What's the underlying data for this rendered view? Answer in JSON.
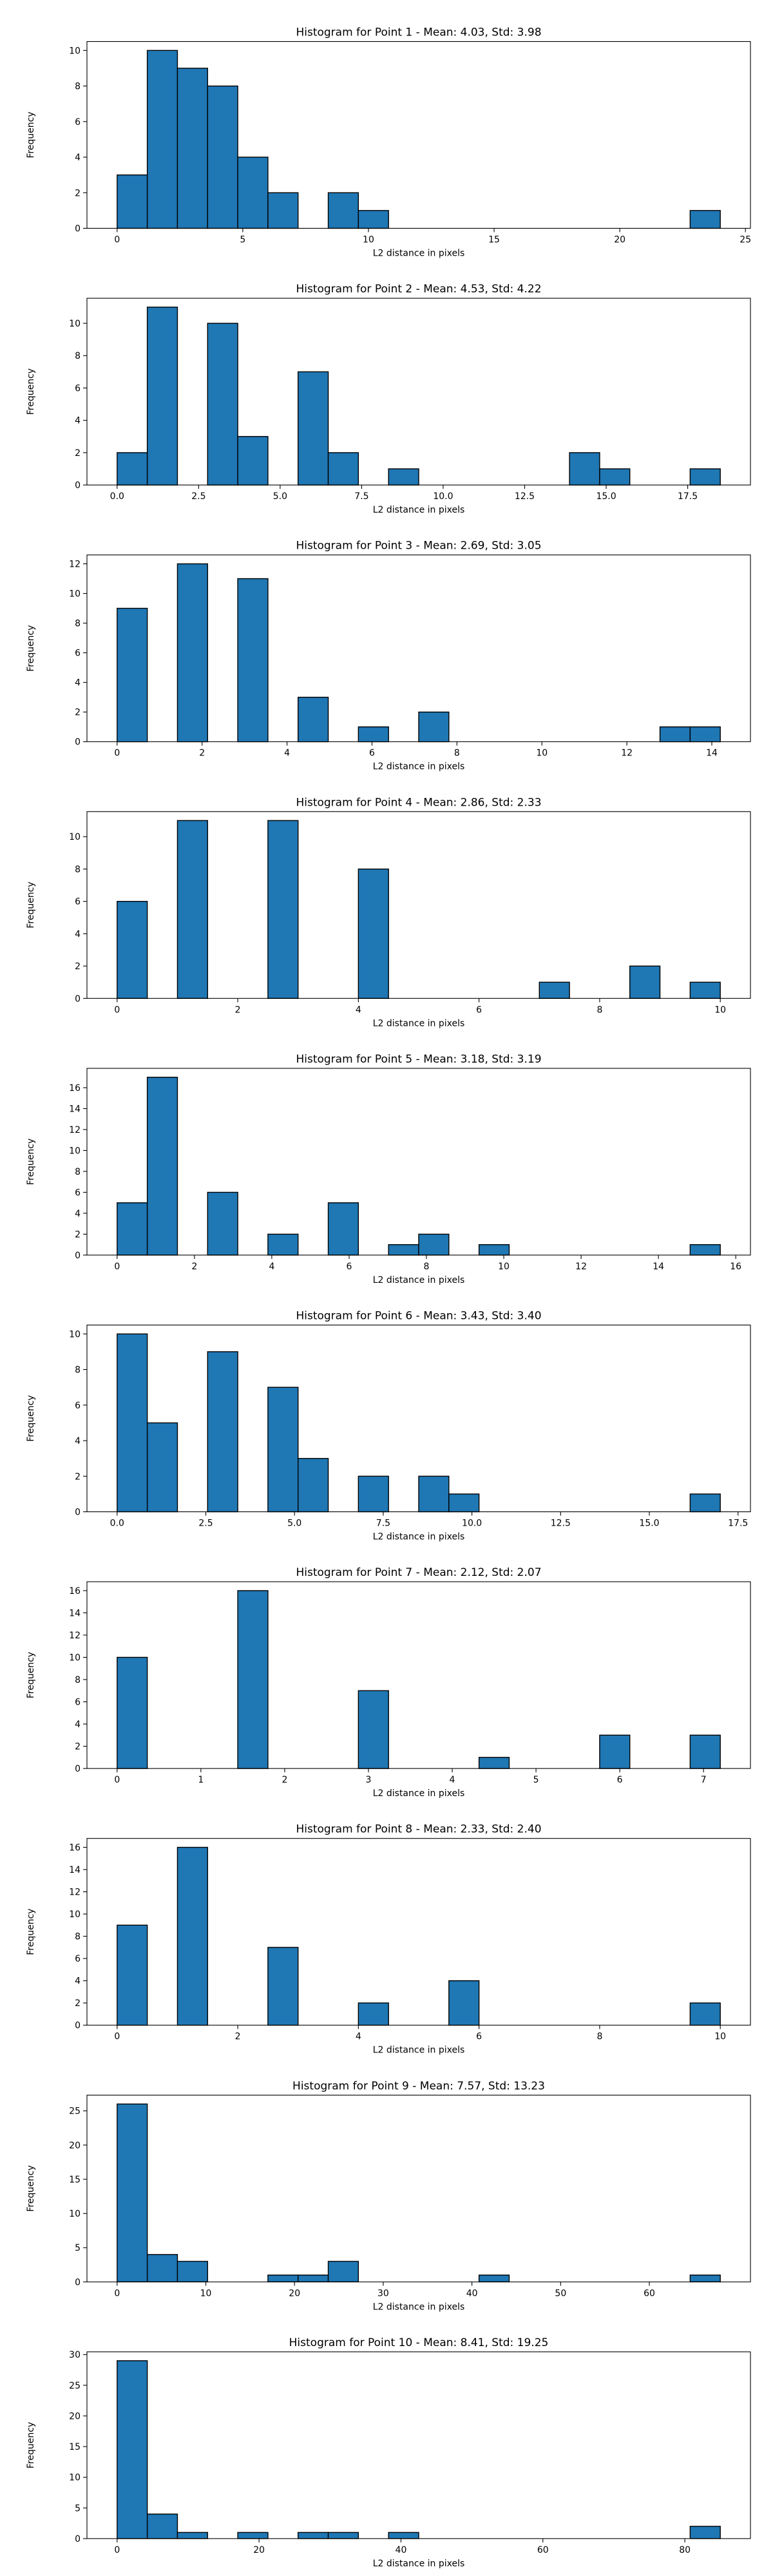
{
  "colors": {
    "bar_fill": "#1f77b4",
    "bar_edge": "#000000",
    "axis": "#000000"
  },
  "chart_data": [
    {
      "type": "bar",
      "title": "Histogram for Point 1 - Mean: 4.03, Std: 3.98",
      "xlabel": "L2 distance in pixels",
      "ylabel": "Frequency",
      "grid": false,
      "bin_edges": [
        0,
        1.2,
        2.4,
        3.6,
        4.8,
        6.0,
        7.2,
        8.4,
        9.6,
        10.8,
        12.0,
        13.2,
        14.4,
        15.6,
        16.8,
        18.0,
        19.2,
        20.4,
        21.6,
        22.8,
        24.0
      ],
      "values": [
        3,
        10,
        9,
        8,
        4,
        2,
        0,
        2,
        1,
        0,
        0,
        0,
        0,
        0,
        0,
        0,
        0,
        0,
        0,
        1
      ],
      "xlim": [
        -1.2,
        25.2
      ],
      "ylim": [
        0,
        10.5
      ],
      "xticks": [
        0,
        5,
        10,
        15,
        20,
        25
      ],
      "xtick_labels": [
        "0",
        "5",
        "10",
        "15",
        "20",
        "25"
      ],
      "yticks": [
        0,
        2,
        4,
        6,
        8,
        10
      ],
      "ytick_labels": [
        "0",
        "2",
        "4",
        "6",
        "8",
        "10"
      ]
    },
    {
      "type": "bar",
      "title": "Histogram for Point 2 - Mean: 4.53, Std: 4.22",
      "xlabel": "L2 distance in pixels",
      "ylabel": "Frequency",
      "grid": false,
      "bin_edges": [
        0,
        0.925,
        1.85,
        2.775,
        3.7,
        4.625,
        5.55,
        6.475,
        7.4,
        8.325,
        9.25,
        10.175,
        11.1,
        12.025,
        12.95,
        13.875,
        14.8,
        15.725,
        16.65,
        17.575,
        18.5
      ],
      "values": [
        2,
        11,
        0,
        10,
        3,
        0,
        7,
        2,
        0,
        1,
        0,
        0,
        0,
        0,
        0,
        2,
        1,
        0,
        0,
        1
      ],
      "xlim": [
        -0.925,
        19.425
      ],
      "ylim": [
        0,
        11.55
      ],
      "xticks": [
        0,
        2.5,
        5,
        7.5,
        10,
        12.5,
        15,
        17.5
      ],
      "xtick_labels": [
        "0.0",
        "2.5",
        "5.0",
        "7.5",
        "10.0",
        "12.5",
        "15.0",
        "17.5"
      ],
      "yticks": [
        0,
        2,
        4,
        6,
        8,
        10
      ],
      "ytick_labels": [
        "0",
        "2",
        "4",
        "6",
        "8",
        "10"
      ]
    },
    {
      "type": "bar",
      "title": "Histogram for Point 3 - Mean: 2.69, Std: 3.05",
      "xlabel": "L2 distance in pixels",
      "ylabel": "Frequency",
      "grid": false,
      "bin_edges": [
        0,
        0.71,
        1.42,
        2.13,
        2.84,
        3.55,
        4.26,
        4.97,
        5.68,
        6.39,
        7.1,
        7.81,
        8.52,
        9.23,
        9.94,
        10.65,
        11.36,
        12.07,
        12.78,
        13.49,
        14.2
      ],
      "values": [
        9,
        0,
        12,
        0,
        11,
        0,
        3,
        0,
        1,
        0,
        2,
        0,
        0,
        0,
        0,
        0,
        0,
        0,
        1,
        1
      ],
      "xlim": [
        -0.71,
        14.91
      ],
      "ylim": [
        0,
        12.6
      ],
      "xticks": [
        0,
        2,
        4,
        6,
        8,
        10,
        12,
        14
      ],
      "xtick_labels": [
        "0",
        "2",
        "4",
        "6",
        "8",
        "10",
        "12",
        "14"
      ],
      "yticks": [
        0,
        2,
        4,
        6,
        8,
        10,
        12
      ],
      "ytick_labels": [
        "0",
        "2",
        "4",
        "6",
        "8",
        "10",
        "12"
      ]
    },
    {
      "type": "bar",
      "title": "Histogram for Point 4 - Mean: 2.86, Std: 2.33",
      "xlabel": "L2 distance in pixels",
      "ylabel": "Frequency",
      "grid": false,
      "bin_edges": [
        0,
        0.5,
        1.0,
        1.5,
        2.0,
        2.5,
        3.0,
        3.5,
        4.0,
        4.5,
        5.0,
        5.5,
        6.0,
        6.5,
        7.0,
        7.5,
        8.0,
        8.5,
        9.0,
        9.5,
        10.0
      ],
      "values": [
        6,
        0,
        11,
        0,
        0,
        11,
        0,
        0,
        8,
        0,
        0,
        0,
        0,
        0,
        1,
        0,
        0,
        2,
        0,
        1
      ],
      "xlim": [
        -0.5,
        10.5
      ],
      "ylim": [
        0,
        11.55
      ],
      "xticks": [
        0,
        2,
        4,
        6,
        8,
        10
      ],
      "xtick_labels": [
        "0",
        "2",
        "4",
        "6",
        "8",
        "10"
      ],
      "yticks": [
        0,
        2,
        4,
        6,
        8,
        10
      ],
      "ytick_labels": [
        "0",
        "2",
        "4",
        "6",
        "8",
        "10"
      ]
    },
    {
      "type": "bar",
      "title": "Histogram for Point 5 - Mean: 3.18, Std: 3.19",
      "xlabel": "L2 distance in pixels",
      "ylabel": "Frequency",
      "grid": false,
      "bin_edges": [
        0,
        0.78,
        1.56,
        2.34,
        3.12,
        3.9,
        4.68,
        5.46,
        6.24,
        7.02,
        7.8,
        8.58,
        9.36,
        10.14,
        10.92,
        11.7,
        12.48,
        13.26,
        14.04,
        14.82,
        15.6
      ],
      "values": [
        5,
        17,
        0,
        6,
        0,
        2,
        0,
        5,
        0,
        1,
        2,
        0,
        1,
        0,
        0,
        0,
        0,
        0,
        0,
        1
      ],
      "xlim": [
        -0.78,
        16.38
      ],
      "ylim": [
        0,
        17.85
      ],
      "xticks": [
        0,
        2,
        4,
        6,
        8,
        10,
        12,
        14,
        16
      ],
      "xtick_labels": [
        "0",
        "2",
        "4",
        "6",
        "8",
        "10",
        "12",
        "14",
        "16"
      ],
      "yticks": [
        0,
        2,
        4,
        6,
        8,
        10,
        12,
        14,
        16
      ],
      "ytick_labels": [
        "0",
        "2",
        "4",
        "6",
        "8",
        "10",
        "12",
        "14",
        "16"
      ]
    },
    {
      "type": "bar",
      "title": "Histogram for Point 6 - Mean: 3.43, Std: 3.40",
      "xlabel": "L2 distance in pixels",
      "ylabel": "Frequency",
      "grid": false,
      "bin_edges": [
        0,
        0.85,
        1.7,
        2.55,
        3.4,
        4.25,
        5.1,
        5.95,
        6.8,
        7.65,
        8.5,
        9.35,
        10.2,
        11.05,
        11.9,
        12.75,
        13.6,
        14.45,
        15.3,
        16.15,
        17.0
      ],
      "values": [
        10,
        5,
        0,
        9,
        0,
        7,
        3,
        0,
        2,
        0,
        2,
        1,
        0,
        0,
        0,
        0,
        0,
        0,
        0,
        1
      ],
      "xlim": [
        -0.85,
        17.85
      ],
      "ylim": [
        0,
        10.5
      ],
      "xticks": [
        0,
        2.5,
        5,
        7.5,
        10,
        12.5,
        15,
        17.5
      ],
      "xtick_labels": [
        "0.0",
        "2.5",
        "5.0",
        "7.5",
        "10.0",
        "12.5",
        "15.0",
        "17.5"
      ],
      "yticks": [
        0,
        2,
        4,
        6,
        8,
        10
      ],
      "ytick_labels": [
        "0",
        "2",
        "4",
        "6",
        "8",
        "10"
      ]
    },
    {
      "type": "bar",
      "title": "Histogram for Point 7 - Mean: 2.12, Std: 2.07",
      "xlabel": "L2 distance in pixels",
      "ylabel": "Frequency",
      "grid": false,
      "bin_edges": [
        0,
        0.36,
        0.72,
        1.08,
        1.44,
        1.8,
        2.16,
        2.52,
        2.88,
        3.24,
        3.6,
        3.96,
        4.32,
        4.68,
        5.04,
        5.4,
        5.76,
        6.12,
        6.48,
        6.84,
        7.2
      ],
      "values": [
        10,
        0,
        0,
        0,
        16,
        0,
        0,
        0,
        7,
        0,
        0,
        0,
        1,
        0,
        0,
        0,
        3,
        0,
        0,
        3
      ],
      "xlim": [
        -0.36,
        7.56
      ],
      "ylim": [
        0,
        16.8
      ],
      "xticks": [
        0,
        1,
        2,
        3,
        4,
        5,
        6,
        7
      ],
      "xtick_labels": [
        "0",
        "1",
        "2",
        "3",
        "4",
        "5",
        "6",
        "7"
      ],
      "yticks": [
        0,
        2,
        4,
        6,
        8,
        10,
        12,
        14,
        16
      ],
      "ytick_labels": [
        "0",
        "2",
        "4",
        "6",
        "8",
        "10",
        "12",
        "14",
        "16"
      ]
    },
    {
      "type": "bar",
      "title": "Histogram for Point 8 - Mean: 2.33, Std: 2.40",
      "xlabel": "L2 distance in pixels",
      "ylabel": "Frequency",
      "grid": false,
      "bin_edges": [
        0,
        0.5,
        1.0,
        1.5,
        2.0,
        2.5,
        3.0,
        3.5,
        4.0,
        4.5,
        5.0,
        5.5,
        6.0,
        6.5,
        7.0,
        7.5,
        8.0,
        8.5,
        9.0,
        9.5,
        10.0
      ],
      "values": [
        9,
        0,
        16,
        0,
        0,
        7,
        0,
        0,
        2,
        0,
        0,
        4,
        0,
        0,
        0,
        0,
        0,
        0,
        0,
        2
      ],
      "xlim": [
        -0.5,
        10.5
      ],
      "ylim": [
        0,
        16.8
      ],
      "xticks": [
        0,
        2,
        4,
        6,
        8,
        10
      ],
      "xtick_labels": [
        "0",
        "2",
        "4",
        "6",
        "8",
        "10"
      ],
      "yticks": [
        0,
        2,
        4,
        6,
        8,
        10,
        12,
        14,
        16
      ],
      "ytick_labels": [
        "0",
        "2",
        "4",
        "6",
        "8",
        "10",
        "12",
        "14",
        "16"
      ]
    },
    {
      "type": "bar",
      "title": "Histogram for Point 9 - Mean: 7.57, Std: 13.23",
      "xlabel": "L2 distance in pixels",
      "ylabel": "Frequency",
      "grid": false,
      "bin_edges": [
        0,
        3.4,
        6.8,
        10.2,
        13.6,
        17.0,
        20.4,
        23.8,
        27.2,
        30.6,
        34.0,
        37.4,
        40.8,
        44.2,
        47.6,
        51.0,
        54.4,
        57.8,
        61.2,
        64.6,
        68.0
      ],
      "values": [
        26,
        4,
        3,
        0,
        0,
        1,
        1,
        3,
        0,
        0,
        0,
        0,
        1,
        0,
        0,
        0,
        0,
        0,
        0,
        1
      ],
      "xlim": [
        -3.4,
        71.4
      ],
      "ylim": [
        0,
        27.3
      ],
      "xticks": [
        0,
        10,
        20,
        30,
        40,
        50,
        60
      ],
      "xtick_labels": [
        "0",
        "10",
        "20",
        "30",
        "40",
        "50",
        "60"
      ],
      "yticks": [
        0,
        5,
        10,
        15,
        20,
        25
      ],
      "ytick_labels": [
        "0",
        "5",
        "10",
        "15",
        "20",
        "25"
      ]
    },
    {
      "type": "bar",
      "title": "Histogram for Point 10 - Mean: 8.41, Std: 19.25",
      "xlabel": "L2 distance in pixels",
      "ylabel": "Frequency",
      "grid": false,
      "bin_edges": [
        0,
        4.25,
        8.5,
        12.75,
        17.0,
        21.25,
        25.5,
        29.75,
        34.0,
        38.25,
        42.5,
        46.75,
        51.0,
        55.25,
        59.5,
        63.75,
        68.0,
        72.25,
        76.5,
        80.75,
        85.0
      ],
      "values": [
        29,
        4,
        1,
        0,
        1,
        0,
        1,
        1,
        0,
        1,
        0,
        0,
        0,
        0,
        0,
        0,
        0,
        0,
        0,
        2
      ],
      "xlim": [
        -4.25,
        89.25
      ],
      "ylim": [
        0,
        30.45
      ],
      "xticks": [
        0,
        20,
        40,
        60,
        80
      ],
      "xtick_labels": [
        "0",
        "20",
        "40",
        "60",
        "80"
      ],
      "yticks": [
        0,
        5,
        10,
        15,
        20,
        25,
        30
      ],
      "ytick_labels": [
        "0",
        "5",
        "10",
        "15",
        "20",
        "25",
        "30"
      ]
    }
  ]
}
